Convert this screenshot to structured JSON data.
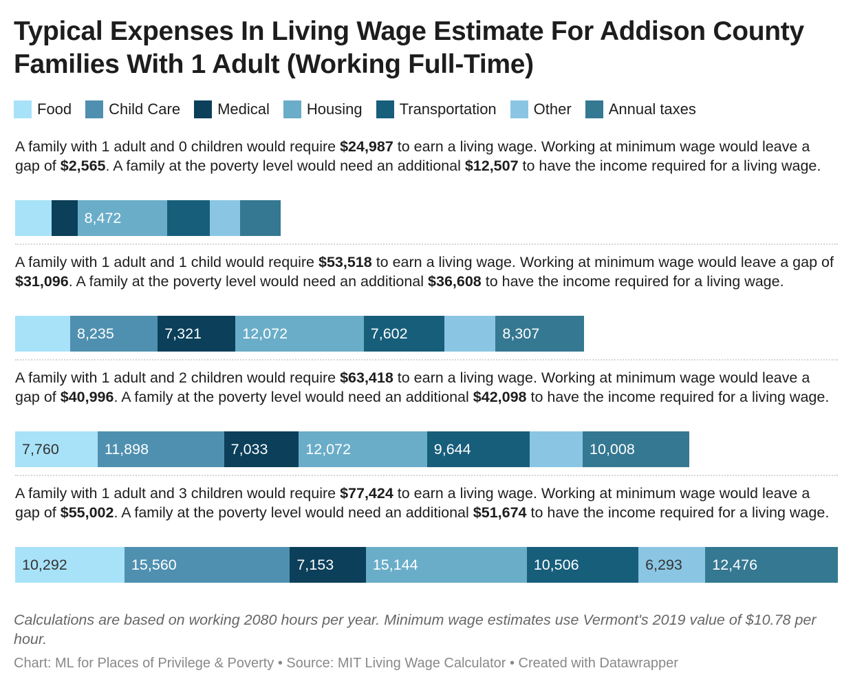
{
  "title": "Typical Expenses In Living Wage Estimate For Addison County Families With 1 Adult (Working Full-Time)",
  "legend": [
    {
      "label": "Food",
      "color": "#a8e2f8"
    },
    {
      "label": "Child Care",
      "color": "#4f90b0"
    },
    {
      "label": "Medical",
      "color": "#0b3f5a"
    },
    {
      "label": "Housing",
      "color": "#6aadc9"
    },
    {
      "label": "Transportation",
      "color": "#175e7b"
    },
    {
      "label": "Other",
      "color": "#8ac6e4"
    },
    {
      "label": "Annual taxes",
      "color": "#357892"
    }
  ],
  "chart_data": {
    "type": "bar",
    "orientation": "horizontal-stacked",
    "categories": [
      "Food",
      "Child Care",
      "Medical",
      "Housing",
      "Transportation",
      "Other",
      "Annual taxes"
    ],
    "rows": [
      {
        "text_parts": [
          "A family with 1 adult and 0 children would require ",
          "$24,987",
          " to earn a living wage. Working at minimum wage would leave a gap of ",
          "$2,565",
          ". A family at the poverty level would need an additional ",
          "$12,507",
          " to have the income required for a living wage."
        ],
        "total": 24987,
        "values": [
          3440,
          0,
          2424,
          8472,
          3999,
          2849,
          3803
        ],
        "labels": [
          "",
          "",
          "",
          "8,472",
          "",
          "",
          ""
        ]
      },
      {
        "text_parts": [
          "A family with 1 adult and 1 child would require ",
          "$53,518",
          " to earn a living wage. Working at minimum wage would leave a gap of ",
          "$31,096",
          ". A family at the poverty level would need an additional ",
          "$36,608",
          " to have the income required for a living wage."
        ],
        "total": 53518,
        "values": [
          5179,
          8235,
          7321,
          12072,
          7602,
          4802,
          8307
        ],
        "labels": [
          "",
          "8,235",
          "7,321",
          "12,072",
          "7,602",
          "",
          "8,307"
        ]
      },
      {
        "text_parts": [
          "A family with 1 adult and 2 children would require ",
          "$63,418",
          " to earn a living wage. Working at minimum wage would leave a gap of ",
          "$40,996",
          ". A family at the poverty level would need an additional ",
          "$42,098",
          " to have the income required for a living wage."
        ],
        "total": 63418,
        "values": [
          7760,
          11898,
          7033,
          12072,
          9644,
          5003,
          10008
        ],
        "labels": [
          "7,760",
          "11,898",
          "7,033",
          "12,072",
          "9,644",
          "",
          "10,008"
        ]
      },
      {
        "text_parts": [
          "A family with 1 adult and 3 children would require ",
          "$77,424",
          " to earn a living wage. Working at minimum wage would leave a gap of ",
          "$55,002",
          ". A family at the poverty level would need an additional ",
          "$51,674",
          " to have the income required for a living wage."
        ],
        "total": 77424,
        "values": [
          10292,
          15560,
          7153,
          15144,
          10506,
          6293,
          12476
        ],
        "labels": [
          "10,292",
          "15,560",
          "7,153",
          "15,144",
          "10,506",
          "6,293",
          "12,476"
        ]
      }
    ]
  },
  "note": "Calculations are based on working 2080 hours per year. Minimum wage estimates use Vermont's 2019 value of $10.78 per hour.",
  "footer": "Chart: ML for Places of Privilege & Poverty • Source: MIT Living Wage Calculator • Created with Datawrapper"
}
